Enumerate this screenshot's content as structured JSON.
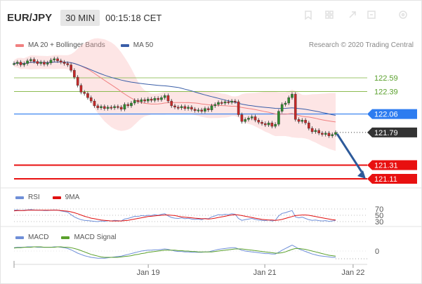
{
  "header": {
    "symbol": "EUR/JPY",
    "interval": "30 MIN",
    "time": "00:15:18 CET",
    "icons": [
      "bookmark-icon",
      "grid-icon",
      "arrow-icon",
      "expand-icon",
      "settings-icon"
    ]
  },
  "legend": {
    "ma20_bb": "MA 20 + Bollinger Bands",
    "ma50": "MA 50",
    "research": "Research © 2020 Trading Central",
    "ma20_color": "#f08080",
    "ma50_color": "#3a5ea8"
  },
  "rsi_legend": {
    "rsi": "RSI",
    "ma9": "9MA",
    "rsi_color": "#6f8fd8",
    "ma9_color": "#e01010"
  },
  "macd_legend": {
    "macd": "MACD",
    "signal": "MACD Signal",
    "macd_color": "#6f8fd8",
    "signal_color": "#5aa02c"
  },
  "levels": [
    {
      "value": 122.59,
      "label": "122.59",
      "type": "resistance",
      "color": "#7bb33a"
    },
    {
      "value": 122.39,
      "label": "122.39",
      "type": "resistance",
      "color": "#7bb33a"
    },
    {
      "value": 122.06,
      "label": "122.06",
      "type": "pivot",
      "color": "#2d7cf0"
    },
    {
      "value": 121.79,
      "label": "121.79",
      "type": "last",
      "color": "#333333"
    },
    {
      "value": 121.31,
      "label": "121.31",
      "type": "target",
      "color": "#e81010"
    },
    {
      "value": 121.11,
      "label": "121.11",
      "type": "target",
      "color": "#e81010"
    }
  ],
  "rsi_ticks": [
    "70",
    "50",
    "30"
  ],
  "macd_ticks": [
    "0"
  ],
  "x_ticks": [
    "Jan 19",
    "Jan 21",
    "Jan 22"
  ],
  "chart_data": {
    "type": "candlestick",
    "y_range": [
      121.05,
      122.95
    ],
    "closes": [
      122.8,
      122.82,
      122.78,
      122.8,
      122.84,
      122.86,
      122.83,
      122.8,
      122.82,
      122.79,
      122.81,
      122.85,
      122.87,
      122.84,
      122.82,
      122.8,
      122.78,
      122.7,
      122.6,
      122.48,
      122.38,
      122.36,
      122.3,
      122.25,
      122.18,
      122.15,
      122.17,
      122.14,
      122.16,
      122.15,
      122.17,
      122.16,
      122.13,
      122.2,
      122.18,
      122.22,
      122.26,
      122.24,
      122.27,
      122.25,
      122.28,
      122.26,
      122.29,
      122.27,
      122.3,
      122.33,
      122.25,
      122.18,
      122.16,
      122.15,
      122.17,
      122.14,
      122.16,
      122.13,
      122.11,
      122.12,
      122.1,
      122.14,
      122.12,
      122.18,
      122.2,
      122.23,
      122.22,
      122.24,
      122.23,
      122.25,
      122.24,
      122.05,
      121.95,
      121.98,
      122.0,
      122.02,
      121.97,
      121.94,
      121.92,
      121.9,
      121.93,
      121.88,
      121.91,
      122.1,
      122.2,
      122.22,
      122.3,
      122.35,
      121.98,
      121.95,
      121.97,
      121.93,
      121.85,
      121.8,
      121.82,
      121.78,
      121.76,
      121.78,
      121.74,
      121.76,
      121.79
    ],
    "rsi": [
      66,
      67,
      65,
      66,
      67,
      68,
      67,
      66,
      66,
      65,
      65,
      66,
      67,
      66,
      64,
      62,
      60,
      52,
      45,
      40,
      36,
      34,
      33,
      32,
      31,
      30,
      32,
      31,
      33,
      32,
      34,
      33,
      32,
      38,
      40,
      43,
      47,
      46,
      49,
      48,
      50,
      49,
      52,
      50,
      53,
      55,
      48,
      43,
      41,
      40,
      42,
      39,
      41,
      38,
      37,
      38,
      36,
      40,
      39,
      45,
      48,
      52,
      51,
      53,
      52,
      55,
      53,
      40,
      34,
      36,
      38,
      40,
      37,
      35,
      34,
      33,
      35,
      32,
      34,
      48,
      56,
      58,
      62,
      65,
      45,
      42,
      44,
      40,
      36,
      34,
      35,
      33,
      32,
      33,
      31,
      32,
      34
    ],
    "rsi_ma": [
      64,
      65,
      65,
      65,
      66,
      66,
      66,
      66,
      66,
      66,
      66,
      66,
      66,
      66,
      65,
      64,
      63,
      61,
      58,
      55,
      51,
      47,
      44,
      41,
      39,
      37,
      35,
      34,
      33,
      32,
      32,
      32,
      32,
      33,
      34,
      36,
      38,
      40,
      42,
      44,
      46,
      47,
      48,
      49,
      50,
      51,
      51,
      50,
      49,
      47,
      45,
      44,
      43,
      42,
      41,
      40,
      39,
      39,
      38,
      39,
      41,
      43,
      45,
      47,
      49,
      51,
      52,
      51,
      49,
      47,
      45,
      43,
      41,
      39,
      37,
      36,
      35,
      35,
      34,
      35,
      37,
      40,
      43,
      46,
      49,
      50,
      51,
      51,
      50,
      48,
      46,
      44,
      42,
      40,
      38,
      36,
      35
    ],
    "macd": [
      0.08,
      0.09,
      0.09,
      0.09,
      0.1,
      0.1,
      0.1,
      0.09,
      0.09,
      0.09,
      0.09,
      0.09,
      0.1,
      0.1,
      0.09,
      0.08,
      0.06,
      0.03,
      -0.01,
      -0.05,
      -0.08,
      -0.11,
      -0.13,
      -0.15,
      -0.16,
      -0.17,
      -0.17,
      -0.17,
      -0.16,
      -0.15,
      -0.14,
      -0.13,
      -0.12,
      -0.1,
      -0.08,
      -0.06,
      -0.04,
      -0.02,
      0.0,
      0.01,
      0.02,
      0.02,
      0.03,
      0.03,
      0.04,
      0.05,
      0.04,
      0.02,
      0.0,
      -0.01,
      -0.01,
      -0.02,
      -0.02,
      -0.03,
      -0.03,
      -0.03,
      -0.03,
      -0.02,
      -0.02,
      0.0,
      0.02,
      0.04,
      0.05,
      0.06,
      0.07,
      0.08,
      0.08,
      0.05,
      0.02,
      0.0,
      -0.01,
      -0.02,
      -0.03,
      -0.04,
      -0.05,
      -0.06,
      -0.06,
      -0.07,
      -0.07,
      -0.03,
      0.02,
      0.06,
      0.1,
      0.14,
      0.1,
      0.05,
      0.02,
      -0.01,
      -0.04,
      -0.07,
      -0.09,
      -0.11,
      -0.12,
      -0.13,
      -0.14,
      -0.15,
      -0.15
    ],
    "macd_signal": [
      0.07,
      0.08,
      0.08,
      0.09,
      0.09,
      0.09,
      0.1,
      0.1,
      0.1,
      0.09,
      0.09,
      0.09,
      0.09,
      0.1,
      0.1,
      0.09,
      0.09,
      0.08,
      0.06,
      0.04,
      0.01,
      -0.02,
      -0.05,
      -0.08,
      -0.1,
      -0.12,
      -0.14,
      -0.15,
      -0.15,
      -0.15,
      -0.15,
      -0.15,
      -0.14,
      -0.13,
      -0.12,
      -0.11,
      -0.09,
      -0.08,
      -0.06,
      -0.05,
      -0.03,
      -0.02,
      -0.01,
      0.0,
      0.01,
      0.02,
      0.02,
      0.02,
      0.02,
      0.01,
      0.01,
      0.0,
      0.0,
      -0.01,
      -0.01,
      -0.02,
      -0.02,
      -0.02,
      -0.02,
      -0.02,
      -0.01,
      0.0,
      0.01,
      0.02,
      0.03,
      0.04,
      0.05,
      0.05,
      0.05,
      0.04,
      0.03,
      0.02,
      0.01,
      0.0,
      -0.01,
      -0.02,
      -0.03,
      -0.04,
      -0.05,
      -0.05,
      -0.04,
      -0.02,
      0.01,
      0.04,
      0.06,
      0.06,
      0.05,
      0.04,
      0.02,
      0.0,
      -0.02,
      -0.04,
      -0.06,
      -0.08,
      -0.1,
      -0.11,
      -0.12
    ],
    "x_tick_positions": [
      0.38,
      0.71,
      0.96
    ]
  }
}
